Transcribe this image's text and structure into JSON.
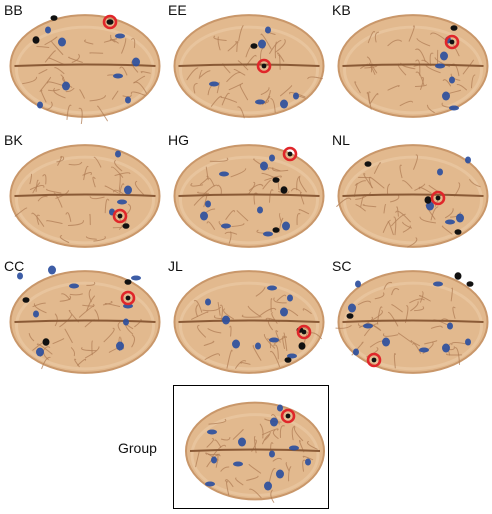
{
  "palette": {
    "skin": "#e2b98e",
    "skin_shade": "#c9976a",
    "sulcus": "#b07d55",
    "blue": "#2d4f9e",
    "black": "#111111",
    "ring": "#e0262a"
  },
  "panels": [
    {
      "label": "BB"
    },
    {
      "label": "EE"
    },
    {
      "label": "KB"
    },
    {
      "label": "BK"
    },
    {
      "label": "HG"
    },
    {
      "label": "NL"
    },
    {
      "label": "CC"
    },
    {
      "label": "JL"
    },
    {
      "label": "SC"
    }
  ],
  "group": {
    "label": "Group"
  }
}
